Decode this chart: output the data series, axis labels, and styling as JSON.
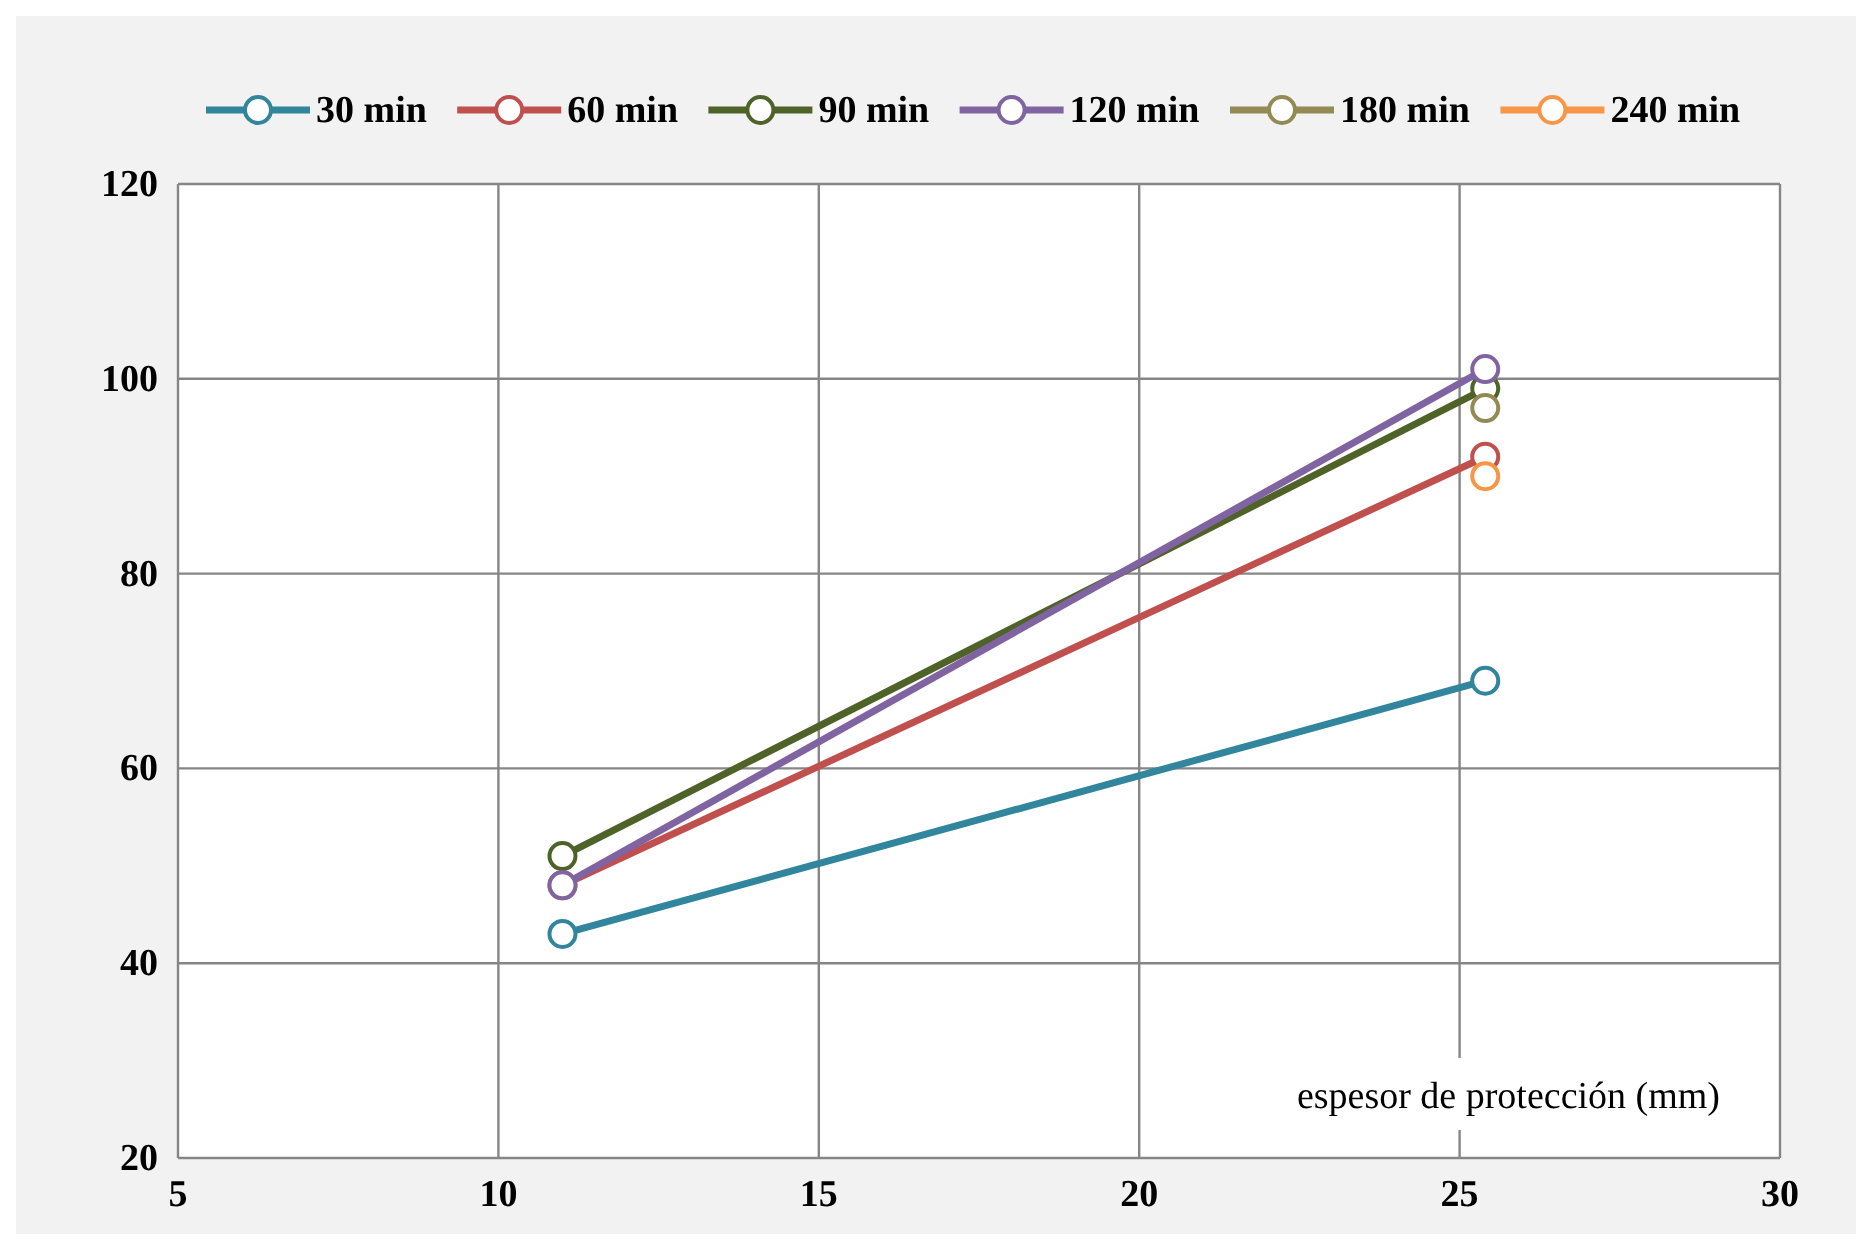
{
  "chart_data": {
    "type": "line",
    "xlabel": "espesor de protección (mm)",
    "xlim": [
      5,
      30
    ],
    "xticks": [
      5,
      10,
      15,
      20,
      25,
      30
    ],
    "ylim": [
      20,
      120
    ],
    "yticks": [
      20,
      40,
      60,
      80,
      100,
      120
    ],
    "x": [
      11,
      25.4
    ],
    "grid": true,
    "legend": "top",
    "marker": "circle",
    "line_style": "solid",
    "series": [
      {
        "name": "30 min",
        "color": "#31859c",
        "values": [
          43,
          69
        ]
      },
      {
        "name": "60 min",
        "color": "#c0504d",
        "values": [
          48,
          92
        ]
      },
      {
        "name": "90 min",
        "color": "#4f6228",
        "values": [
          51,
          99
        ]
      },
      {
        "name": "120 min",
        "color": "#8064a2",
        "values": [
          48,
          101
        ]
      },
      {
        "name": "180 min",
        "color": "#948a54",
        "values": [
          null,
          97
        ]
      },
      {
        "name": "240 min",
        "color": "#f79646",
        "values": [
          null,
          90
        ]
      }
    ]
  }
}
